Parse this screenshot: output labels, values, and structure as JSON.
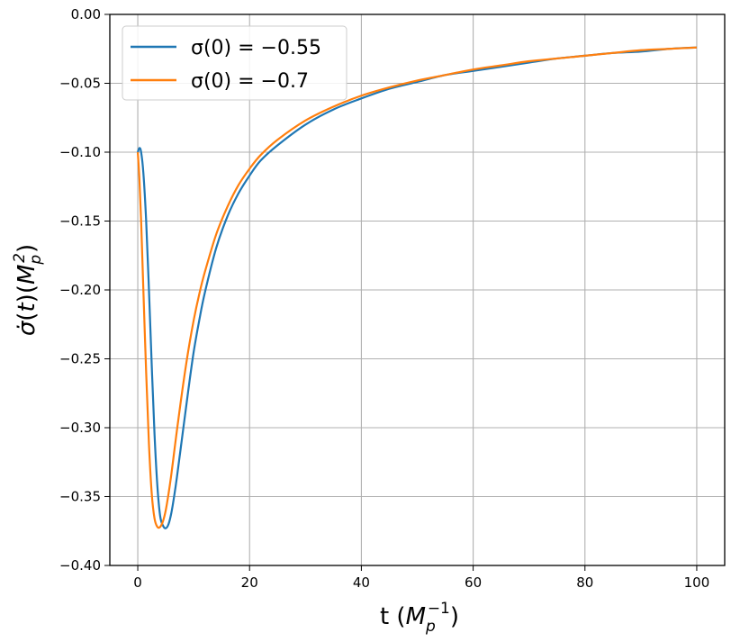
{
  "chart_data": {
    "type": "line",
    "title": "",
    "xlabel": "t (M_p^{-1})",
    "ylabel": "σ̇(t)(M_p^2)",
    "xlim": [
      -5,
      105
    ],
    "ylim": [
      -0.4,
      0.0
    ],
    "grid": true,
    "legend_position": "top-left",
    "x_ticks": [
      "0",
      "20",
      "40",
      "60",
      "80",
      "100"
    ],
    "x_tick_values": [
      0,
      20,
      40,
      60,
      80,
      100
    ],
    "y_ticks": [
      "0.00",
      "−0.05",
      "−0.10",
      "−0.15",
      "−0.20",
      "−0.25",
      "−0.30",
      "−0.35",
      "−0.40"
    ],
    "y_tick_values": [
      0.0,
      -0.05,
      -0.1,
      -0.15,
      -0.2,
      -0.25,
      -0.3,
      -0.35,
      -0.4
    ],
    "series": [
      {
        "name": "σ(0) = −0.55",
        "color": "#1f77b4",
        "x": [
          0.0,
          0.3,
          0.6,
          1.0,
          1.5,
          2.0,
          2.5,
          3.0,
          3.5,
          4.0,
          4.5,
          5.0,
          5.5,
          6.0,
          6.5,
          7.0,
          8.0,
          9.0,
          10.0,
          11.0,
          12.0,
          14.0,
          16.0,
          18.0,
          20.0,
          22.0,
          25.0,
          30.0,
          35.0,
          40.0,
          45.0,
          50.0,
          55.0,
          60.0,
          65.0,
          70.0,
          75.0,
          80.0,
          85.0,
          90.0,
          95.0,
          100.0
        ],
        "y": [
          -0.1,
          -0.097,
          -0.1,
          -0.115,
          -0.15,
          -0.2,
          -0.255,
          -0.305,
          -0.342,
          -0.364,
          -0.371,
          -0.373,
          -0.37,
          -0.362,
          -0.35,
          -0.336,
          -0.305,
          -0.274,
          -0.245,
          -0.222,
          -0.202,
          -0.17,
          -0.147,
          -0.13,
          -0.117,
          -0.106,
          -0.095,
          -0.08,
          -0.069,
          -0.061,
          -0.054,
          -0.049,
          -0.044,
          -0.041,
          -0.038,
          -0.035,
          -0.032,
          -0.03,
          -0.028,
          -0.027,
          -0.025,
          -0.024
        ]
      },
      {
        "name": "σ(0) = −0.7",
        "color": "#ff7f0e",
        "x": [
          0.0,
          0.3,
          0.6,
          1.0,
          1.5,
          2.0,
          2.5,
          3.0,
          3.5,
          4.0,
          4.5,
          5.0,
          5.5,
          6.0,
          6.5,
          7.0,
          8.0,
          9.0,
          10.0,
          11.0,
          12.0,
          14.0,
          16.0,
          18.0,
          20.0,
          22.0,
          25.0,
          30.0,
          35.0,
          40.0,
          45.0,
          50.0,
          55.0,
          60.0,
          65.0,
          70.0,
          75.0,
          80.0,
          85.0,
          90.0,
          95.0,
          100.0
        ],
        "y": [
          -0.1,
          -0.12,
          -0.15,
          -0.2,
          -0.26,
          -0.312,
          -0.348,
          -0.366,
          -0.372,
          -0.372,
          -0.368,
          -0.36,
          -0.348,
          -0.334,
          -0.318,
          -0.302,
          -0.272,
          -0.245,
          -0.222,
          -0.203,
          -0.187,
          -0.16,
          -0.14,
          -0.124,
          -0.112,
          -0.102,
          -0.091,
          -0.077,
          -0.067,
          -0.059,
          -0.053,
          -0.048,
          -0.044,
          -0.04,
          -0.037,
          -0.034,
          -0.032,
          -0.03,
          -0.028,
          -0.026,
          -0.025,
          -0.024
        ]
      }
    ]
  }
}
